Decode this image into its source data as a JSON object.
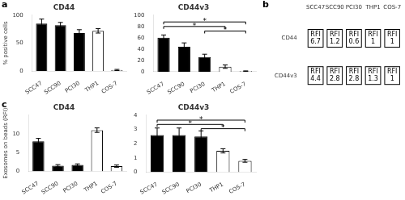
{
  "chart_data": [
    {
      "type": "bar",
      "title": "CD44",
      "ylabel": "% positive cells",
      "categories": [
        "SCC47",
        "SCC90",
        "PCI30",
        "THP1",
        "COS-7"
      ],
      "values": [
        85,
        82,
        68,
        72,
        2
      ],
      "errors": [
        8,
        5,
        6,
        4,
        1
      ],
      "colors": [
        "black",
        "black",
        "black",
        "white",
        "white"
      ],
      "ylim": [
        0,
        100
      ],
      "yticks": [
        0,
        50,
        100
      ],
      "grid": false,
      "annotations": [
        {
          "text": "a"
        }
      ]
    },
    {
      "type": "bar",
      "title": "CD44v3",
      "categories": [
        "SCC47",
        "SCC90",
        "PCI30",
        "THP1",
        "COS-7"
      ],
      "values": [
        60,
        44,
        26,
        9,
        1
      ],
      "errors": [
        5,
        7,
        5,
        3,
        0.5
      ],
      "colors": [
        "black",
        "black",
        "black",
        "white",
        "white"
      ],
      "ylim": [
        0,
        100
      ],
      "yticks": [
        0,
        20,
        40,
        60,
        80,
        100
      ],
      "grid": false,
      "annotations": [
        {
          "text": "*",
          "from": "SCC47",
          "to": "COS-7",
          "y": 88
        },
        {
          "text": "*",
          "from": "SCC47",
          "to": "THP1",
          "y": 80
        },
        {
          "text": "*",
          "from": "PCI30",
          "to": "COS-7",
          "y": 72
        }
      ]
    },
    {
      "type": "table",
      "categories": [
        "SCC47",
        "SCC90",
        "PCI30",
        "THP1",
        "COS-7"
      ],
      "series": [
        {
          "name": "CD44",
          "values": [
            6.7,
            1.2,
            0.6,
            1,
            1
          ],
          "value_labels": [
            "RFI\n6.7",
            "RFI\n1.2",
            "RFI\n0.6",
            "RFI\n1",
            "RFI\n1"
          ]
        },
        {
          "name": "CD44v3",
          "values": [
            4.4,
            2.8,
            2.8,
            1.3,
            1
          ],
          "value_labels": [
            "RFI\n4.4",
            "RFI\n2.8",
            "RFI\n2.8",
            "RFI\n1.3",
            "RFI\n1"
          ]
        }
      ],
      "data_labels": true,
      "annotations": [
        {
          "text": "b"
        }
      ]
    },
    {
      "type": "bar",
      "title": "CD44",
      "ylabel": "Exosomes on beads (RFI)",
      "categories": [
        "SCC47",
        "SCC90",
        "PCI30",
        "THP1",
        "COS-7"
      ],
      "values": [
        8.0,
        1.5,
        1.7,
        11.0,
        1.4
      ],
      "errors": [
        0.8,
        0.3,
        0.3,
        0.6,
        0.3
      ],
      "colors": [
        "black",
        "black",
        "black",
        "white",
        "white"
      ],
      "ylim": [
        0,
        15
      ],
      "yticks": [
        0,
        5,
        10
      ],
      "grid": false,
      "annotations": [
        {
          "text": "c"
        }
      ]
    },
    {
      "type": "bar",
      "title": "CD44v3",
      "categories": [
        "SCC47",
        "SCC90",
        "PCI30",
        "THP1",
        "COS-7"
      ],
      "values": [
        2.6,
        2.6,
        2.5,
        1.5,
        0.8
      ],
      "errors": [
        0.5,
        0.5,
        0.4,
        0.15,
        0.1
      ],
      "colors": [
        "black",
        "black",
        "black",
        "white",
        "white"
      ],
      "ylim": [
        0,
        4
      ],
      "yticks": [
        0,
        1,
        2,
        3,
        4
      ],
      "grid": false,
      "annotations": [
        {
          "text": "*",
          "from": "SCC47",
          "to": "COS-7",
          "y": 3.65
        },
        {
          "text": "*",
          "from": "SCC47",
          "to": "THP1",
          "y": 3.35
        },
        {
          "text": "*",
          "from": "PCI30",
          "to": "COS-7",
          "y": 3.05
        }
      ]
    }
  ]
}
